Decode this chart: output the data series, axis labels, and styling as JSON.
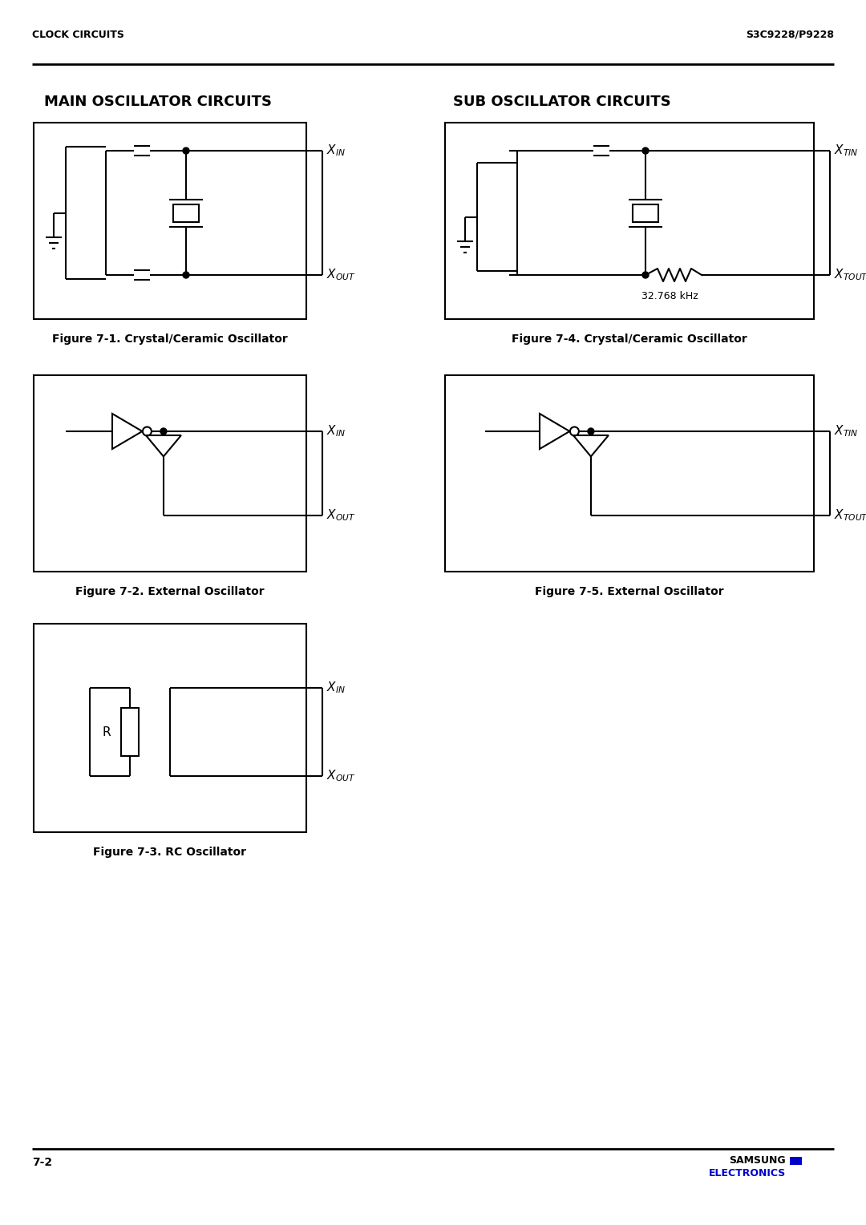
{
  "page_title_left": "CLOCK CIRCUITS",
  "page_title_right": "S3C9228/P9228",
  "main_heading": "MAIN OSCILLATOR CIRCUITS",
  "sub_heading": "SUB OSCILLATOR CIRCUITS",
  "fig1_caption": "Figure 7-1. Crystal/Ceramic Oscillator",
  "fig2_caption": "Figure 7-2. External Oscillator",
  "fig3_caption": "Figure 7-3. RC Oscillator",
  "fig4_caption": "Figure 7-4. Crystal/Ceramic Oscillator",
  "fig5_caption": "Figure 7-5. External Oscillator",
  "page_number": "7-2",
  "samsung_text": "SAMSUNG",
  "electronics_text": "ELECTRONICS",
  "bg_color": "#ffffff",
  "text_color": "#000000",
  "blue_color": "#0000cc",
  "line_color": "#000000",
  "box_color": "#000000"
}
